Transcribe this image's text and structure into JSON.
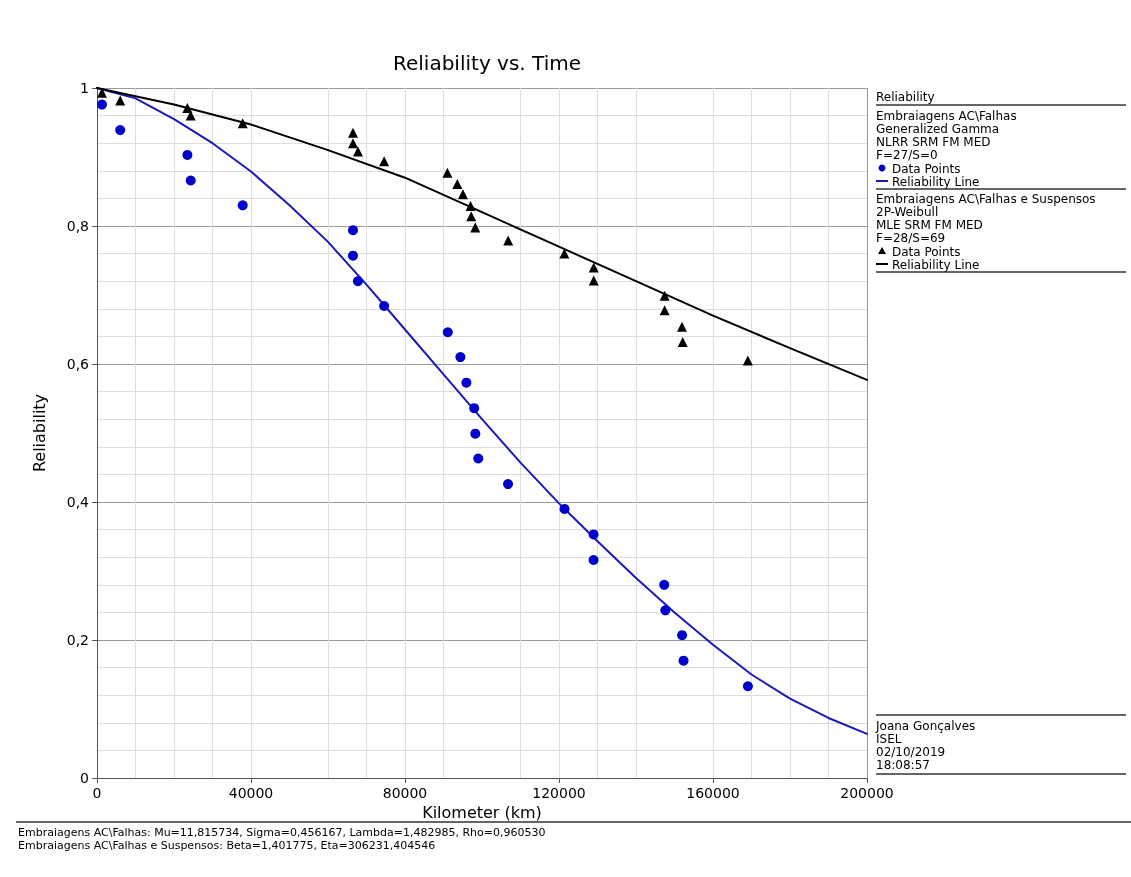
{
  "chart_data": {
    "type": "scatter",
    "title": "Reliability vs. Time",
    "xlabel": "Kilometer (km)",
    "ylabel": "Reliability",
    "legend_title": "Reliability",
    "xlim": [
      0,
      200000
    ],
    "xticks": [
      0,
      40000,
      80000,
      120000,
      160000,
      200000
    ],
    "ylim": [
      0,
      1
    ],
    "yticks": [
      0,
      {
        "value": 0.2,
        "label": "0,2"
      },
      {
        "value": 0.4,
        "label": "0,4"
      },
      {
        "value": 0.6,
        "label": "0,6"
      },
      {
        "value": 0.8,
        "label": "0,8"
      },
      1
    ],
    "grid": true,
    "legend": "right",
    "line_style": "solid",
    "series": [
      {
        "name": "Data Points",
        "color": "#0000cc",
        "marker": "circle",
        "x": [
          1290,
          6020,
          23480,
          24340,
          37850,
          66490,
          66490,
          67780,
          74580,
          91110,
          94390,
          95940,
          97970,
          98260,
          99030,
          106760,
          121440,
          128980,
          128980,
          147330,
          147620,
          151970,
          152350,
          169070
        ],
        "values": [
          0.976,
          0.939,
          0.903,
          0.866,
          0.83,
          0.794,
          0.757,
          0.72,
          0.684,
          0.646,
          0.61,
          0.573,
          0.536,
          0.499,
          0.463,
          0.426,
          0.39,
          0.353,
          0.316,
          0.28,
          0.243,
          0.207,
          0.17,
          0.133
        ]
      },
      {
        "type": "line",
        "name": "Reliability Line",
        "color": "#1a1ab8",
        "marker": "none",
        "x": [
          0,
          10000,
          20000,
          30000,
          40000,
          50000,
          60000,
          70000,
          80000,
          90000,
          100000,
          110000,
          120000,
          130000,
          140000,
          150000,
          160000,
          170000,
          180000,
          190000,
          200000
        ],
        "values": [
          1,
          0.985,
          0.955,
          0.92,
          0.879,
          0.83,
          0.777,
          0.715,
          0.65,
          0.585,
          0.52,
          0.457,
          0.398,
          0.343,
          0.29,
          0.24,
          0.193,
          0.15,
          0.115,
          0.087,
          0.064
        ]
      },
      {
        "name": "Data Points",
        "color": "#000000",
        "marker": "triangle",
        "x": [
          1290,
          6020,
          23480,
          24340,
          37850,
          66490,
          66490,
          67780,
          74580,
          91000,
          93590,
          95050,
          97030,
          97200,
          98240,
          106800,
          121390,
          129030,
          129030,
          147430,
          147430,
          151940,
          152120,
          169050
        ],
        "values": [
          0.993,
          0.982,
          0.971,
          0.96,
          0.949,
          0.935,
          0.92,
          0.908,
          0.894,
          0.877,
          0.861,
          0.846,
          0.829,
          0.814,
          0.798,
          0.779,
          0.76,
          0.74,
          0.721,
          0.699,
          0.678,
          0.654,
          0.632,
          0.605
        ]
      },
      {
        "type": "line",
        "name": "Reliability Line",
        "color": "#000000",
        "marker": "none",
        "x": [
          0,
          20000,
          40000,
          60000,
          80000,
          100000,
          120000,
          140000,
          160000,
          180000,
          200000
        ],
        "values": [
          1,
          0.976,
          0.947,
          0.91,
          0.87,
          0.82,
          0.77,
          0.72,
          0.67,
          0.623,
          0.577
        ]
      }
    ],
    "annotations": [
      "Embraiagens AC\\Falhas\nGeneralized Gamma\nNLRR SRM FM MED\nF=27/S=0",
      "Embraiagens AC\\Falhas e Suspensos\n2P-Weibull\nMLE SRM FM MED\nF=28/S=69",
      "Joana Gonçalves\nISEL\n02/10/2019\n18:08:57",
      "Embraiagens AC\\Falhas: Mu=11,815734, Sigma=0,456167, Lambda=1,482985, Rho=0,960530\nEmbraiagens AC\\Falhas e Suspensos: Beta=1,401775, Eta=306231,404546"
    ]
  }
}
